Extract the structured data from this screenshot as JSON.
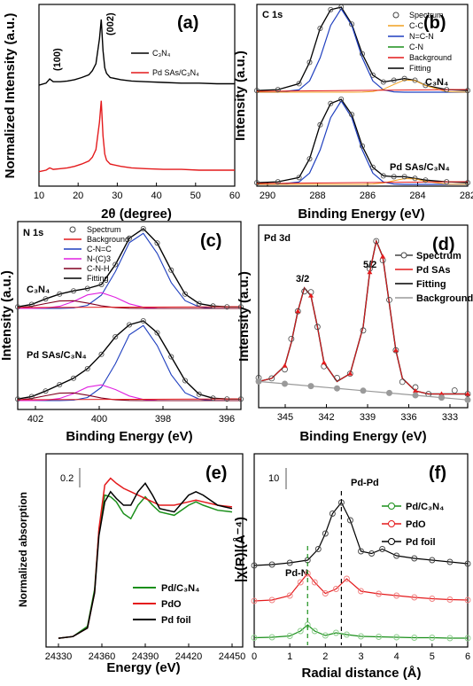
{
  "colors": {
    "black": "#000000",
    "red": "#e41a1c",
    "blue": "#1f3fbf",
    "green": "#1a8f1a",
    "magenta": "#e020e0",
    "orange": "#f0a020",
    "maroon": "#800020",
    "grey": "#9a9a9a",
    "lightred": "#f08080",
    "lightgreen": "#8ccc8c"
  },
  "chart_data": [
    {
      "id": "a",
      "type": "line",
      "panel_label": "(a)",
      "xlabel": "2θ (degree)",
      "ylabel": "Normalized Intensity (a.u.)",
      "xlim": [
        10,
        65
      ],
      "xticks": [
        "10",
        "20",
        "30",
        "40",
        "50",
        "60"
      ],
      "annotations": [
        "(100)",
        "(002)"
      ],
      "series": [
        {
          "name": "C₃N₄",
          "color": "#000000",
          "x": [
            10,
            12,
            13,
            14,
            16,
            18,
            20,
            22,
            24,
            25,
            26,
            27,
            27.5,
            28,
            28.5,
            29,
            30,
            33,
            36,
            40,
            45,
            50,
            55,
            60,
            65
          ],
          "y": [
            0.05,
            0.08,
            0.14,
            0.1,
            0.1,
            0.11,
            0.13,
            0.16,
            0.2,
            0.26,
            0.36,
            0.72,
            1.0,
            0.55,
            0.3,
            0.22,
            0.16,
            0.13,
            0.11,
            0.1,
            0.09,
            0.08,
            0.08,
            0.07,
            0.07
          ]
        },
        {
          "name": "Pd SAs/C₃N₄",
          "color": "#e41a1c",
          "x": [
            10,
            12,
            13,
            14,
            16,
            18,
            20,
            22,
            24,
            25,
            26,
            27,
            27.5,
            28,
            28.5,
            29,
            30,
            33,
            36,
            40,
            45,
            50,
            55,
            60,
            65
          ],
          "y": [
            0.05,
            0.07,
            0.1,
            0.08,
            0.09,
            0.1,
            0.12,
            0.15,
            0.19,
            0.24,
            0.34,
            0.7,
            0.98,
            0.52,
            0.28,
            0.2,
            0.15,
            0.12,
            0.1,
            0.09,
            0.08,
            0.08,
            0.07,
            0.07,
            0.07
          ]
        }
      ]
    },
    {
      "id": "b",
      "type": "line",
      "panel_label": "(b)",
      "corner_label": "C 1s",
      "xlabel": "Binding Energy (eV)",
      "ylabel": "Intensity (a.u.)",
      "xlim": [
        292,
        282
      ],
      "xticks": [
        "290",
        "288",
        "286",
        "284",
        "282"
      ],
      "legend": [
        "Spectrum",
        "C-C",
        "N=C-N",
        "C-N",
        "Background",
        "Fitting"
      ],
      "sample_labels": [
        "C₃N₄",
        "Pd SAs/C₃N₄"
      ],
      "upper": {
        "x": [
          292,
          291,
          290,
          289.5,
          289,
          288.5,
          288,
          287.5,
          287,
          286.5,
          286,
          285.5,
          285,
          284.5,
          284,
          283,
          282
        ],
        "y": [
          0.02,
          0.03,
          0.1,
          0.35,
          0.75,
          0.97,
          1.0,
          0.8,
          0.45,
          0.2,
          0.12,
          0.14,
          0.16,
          0.14,
          0.08,
          0.03,
          0.02
        ]
      },
      "lower": {
        "x": [
          292,
          291,
          290,
          289.5,
          289,
          288.5,
          288,
          287.5,
          287,
          286.5,
          286,
          285.5,
          285,
          284.5,
          284,
          283,
          282
        ],
        "y": [
          0.02,
          0.03,
          0.08,
          0.3,
          0.7,
          0.95,
          1.0,
          0.82,
          0.45,
          0.2,
          0.1,
          0.09,
          0.09,
          0.07,
          0.05,
          0.03,
          0.02
        ]
      }
    },
    {
      "id": "c",
      "type": "line",
      "panel_label": "(c)",
      "corner_label": "N 1s",
      "xlabel": "Binding Energy (eV)",
      "ylabel": "Intensity (a.u.)",
      "xlim": [
        403,
        395
      ],
      "xticks": [
        "402",
        "400",
        "398",
        "396"
      ],
      "legend": [
        "Spectrum",
        "Background",
        "C-N=C",
        "N-(C)3",
        "C-N-H",
        "Fitting"
      ],
      "sample_labels": [
        "C₃N₄",
        "Pd SAs/C₃N₄"
      ],
      "upper": {
        "x": [
          403,
          402.5,
          402,
          401.5,
          401,
          400.5,
          400,
          399.5,
          399,
          398.5,
          398,
          397.5,
          397,
          396.5,
          396,
          395.5,
          395
        ],
        "y": [
          0.02,
          0.05,
          0.12,
          0.18,
          0.22,
          0.25,
          0.3,
          0.55,
          0.88,
          1.0,
          0.82,
          0.48,
          0.18,
          0.06,
          0.03,
          0.02,
          0.02
        ]
      },
      "lower": {
        "x": [
          403,
          402.5,
          402,
          401.5,
          401,
          400.5,
          400,
          399.5,
          399,
          398.5,
          398,
          397.5,
          397,
          396.5,
          396,
          395.5,
          395
        ],
        "y": [
          0.02,
          0.05,
          0.12,
          0.2,
          0.28,
          0.4,
          0.58,
          0.8,
          0.95,
          1.0,
          0.85,
          0.55,
          0.25,
          0.08,
          0.03,
          0.02,
          0.02
        ]
      }
    },
    {
      "id": "d",
      "type": "line",
      "panel_label": "(d)",
      "corner_label": "Pd 3d",
      "xlabel": "Binding Energy (eV)",
      "ylabel": "Intensity (a.u.)",
      "xlim": [
        347,
        331
      ],
      "xticks": [
        "345",
        "342",
        "339",
        "336",
        "333"
      ],
      "annotations": [
        "3/2",
        "5/2"
      ],
      "legend": [
        "Spectrum",
        "Pd SAs",
        "Fitting",
        "Background"
      ],
      "x": [
        347,
        346,
        345,
        344.5,
        344,
        343.5,
        343,
        342.5,
        342,
        341,
        340,
        339,
        338.5,
        338,
        337.5,
        337,
        336.5,
        336,
        335,
        334,
        333,
        332,
        331
      ],
      "y": [
        0.1,
        0.12,
        0.2,
        0.35,
        0.55,
        0.7,
        0.65,
        0.45,
        0.22,
        0.1,
        0.15,
        0.45,
        0.8,
        1.0,
        0.9,
        0.6,
        0.3,
        0.12,
        0.04,
        0.02,
        0.02,
        0.02,
        0.02
      ]
    },
    {
      "id": "e",
      "type": "line",
      "panel_label": "(e)",
      "xlabel": "Energy (eV)",
      "ylabel": "Normalized absorption",
      "xlim": [
        24330,
        24450
      ],
      "xticks": [
        "24330",
        "24360",
        "24390",
        "24420",
        "24450"
      ],
      "scale_label": "0.2",
      "series": [
        {
          "name": "Pd/C₃N₄",
          "color": "#1a8f1a",
          "x": [
            24330,
            24340,
            24350,
            24355,
            24358,
            24362,
            24366,
            24370,
            24375,
            24380,
            24385,
            24390,
            24395,
            24400,
            24410,
            24420,
            24425,
            24430,
            24440,
            24450
          ],
          "y": [
            0.01,
            0.02,
            0.08,
            0.3,
            0.65,
            0.86,
            0.85,
            0.82,
            0.75,
            0.72,
            0.8,
            0.85,
            0.8,
            0.76,
            0.74,
            0.8,
            0.82,
            0.8,
            0.77,
            0.76
          ]
        },
        {
          "name": "PdO",
          "color": "#e41a1c",
          "x": [
            24330,
            24340,
            24350,
            24355,
            24358,
            24362,
            24366,
            24370,
            24375,
            24380,
            24385,
            24390,
            24395,
            24400,
            24410,
            24420,
            24425,
            24430,
            24440,
            24450
          ],
          "y": [
            0.01,
            0.02,
            0.07,
            0.28,
            0.66,
            0.92,
            0.96,
            0.93,
            0.9,
            0.88,
            0.86,
            0.84,
            0.82,
            0.8,
            0.8,
            0.82,
            0.83,
            0.82,
            0.8,
            0.79
          ]
        },
        {
          "name": "Pd foil",
          "color": "#000000",
          "x": [
            24330,
            24340,
            24350,
            24355,
            24358,
            24362,
            24366,
            24370,
            24375,
            24380,
            24385,
            24390,
            24395,
            24400,
            24410,
            24420,
            24425,
            24430,
            24440,
            24450
          ],
          "y": [
            0.01,
            0.02,
            0.07,
            0.28,
            0.62,
            0.82,
            0.88,
            0.84,
            0.8,
            0.8,
            0.88,
            0.93,
            0.86,
            0.78,
            0.76,
            0.86,
            0.88,
            0.86,
            0.8,
            0.78
          ]
        }
      ]
    },
    {
      "id": "f",
      "type": "line",
      "panel_label": "(f)",
      "xlabel": "Radial distance (Å)",
      "ylabel": "|χ(R)|(Å⁻⁴)",
      "xlim": [
        0,
        6
      ],
      "xticks": [
        "0",
        "1",
        "2",
        "3",
        "4",
        "5",
        "6"
      ],
      "scale_label": "10",
      "annotations": [
        "Pd-N",
        "Pd-Pd"
      ],
      "series": [
        {
          "name": "Pd/C₃N₄",
          "color": "#1a8f1a",
          "offset": 0,
          "x": [
            0,
            0.5,
            1.0,
            1.3,
            1.5,
            1.7,
            2.0,
            2.3,
            2.6,
            3.0,
            3.5,
            4.0,
            4.5,
            5.0,
            5.5,
            6.0
          ],
          "y": [
            0.5,
            0.6,
            0.9,
            2.0,
            3.4,
            2.0,
            1.0,
            1.6,
            1.2,
            0.8,
            0.7,
            0.6,
            0.5,
            0.5,
            0.4,
            0.4
          ]
        },
        {
          "name": "PdO",
          "color": "#e41a1c",
          "offset": 8,
          "x": [
            0,
            0.5,
            1.0,
            1.3,
            1.5,
            1.7,
            2.0,
            2.3,
            2.6,
            3.0,
            3.5,
            4.0,
            4.5,
            5.0,
            5.5,
            6.0
          ],
          "y": [
            0.8,
            1.0,
            2.0,
            5.0,
            7.0,
            5.0,
            2.5,
            3.5,
            5.8,
            3.0,
            2.4,
            2.0,
            1.6,
            1.3,
            1.1,
            1.0
          ]
        },
        {
          "name": "Pd foil",
          "color": "#000000",
          "offset": 16,
          "x": [
            0,
            0.5,
            1.0,
            1.5,
            1.8,
            2.0,
            2.2,
            2.45,
            2.7,
            3.0,
            3.3,
            3.6,
            4.0,
            4.5,
            5.0,
            5.5,
            6.0
          ],
          "y": [
            0.8,
            1.0,
            1.4,
            2.0,
            4.5,
            8.0,
            12.5,
            15.0,
            11.0,
            4.0,
            3.5,
            4.5,
            3.0,
            2.4,
            2.0,
            1.6,
            1.2
          ]
        }
      ]
    }
  ]
}
